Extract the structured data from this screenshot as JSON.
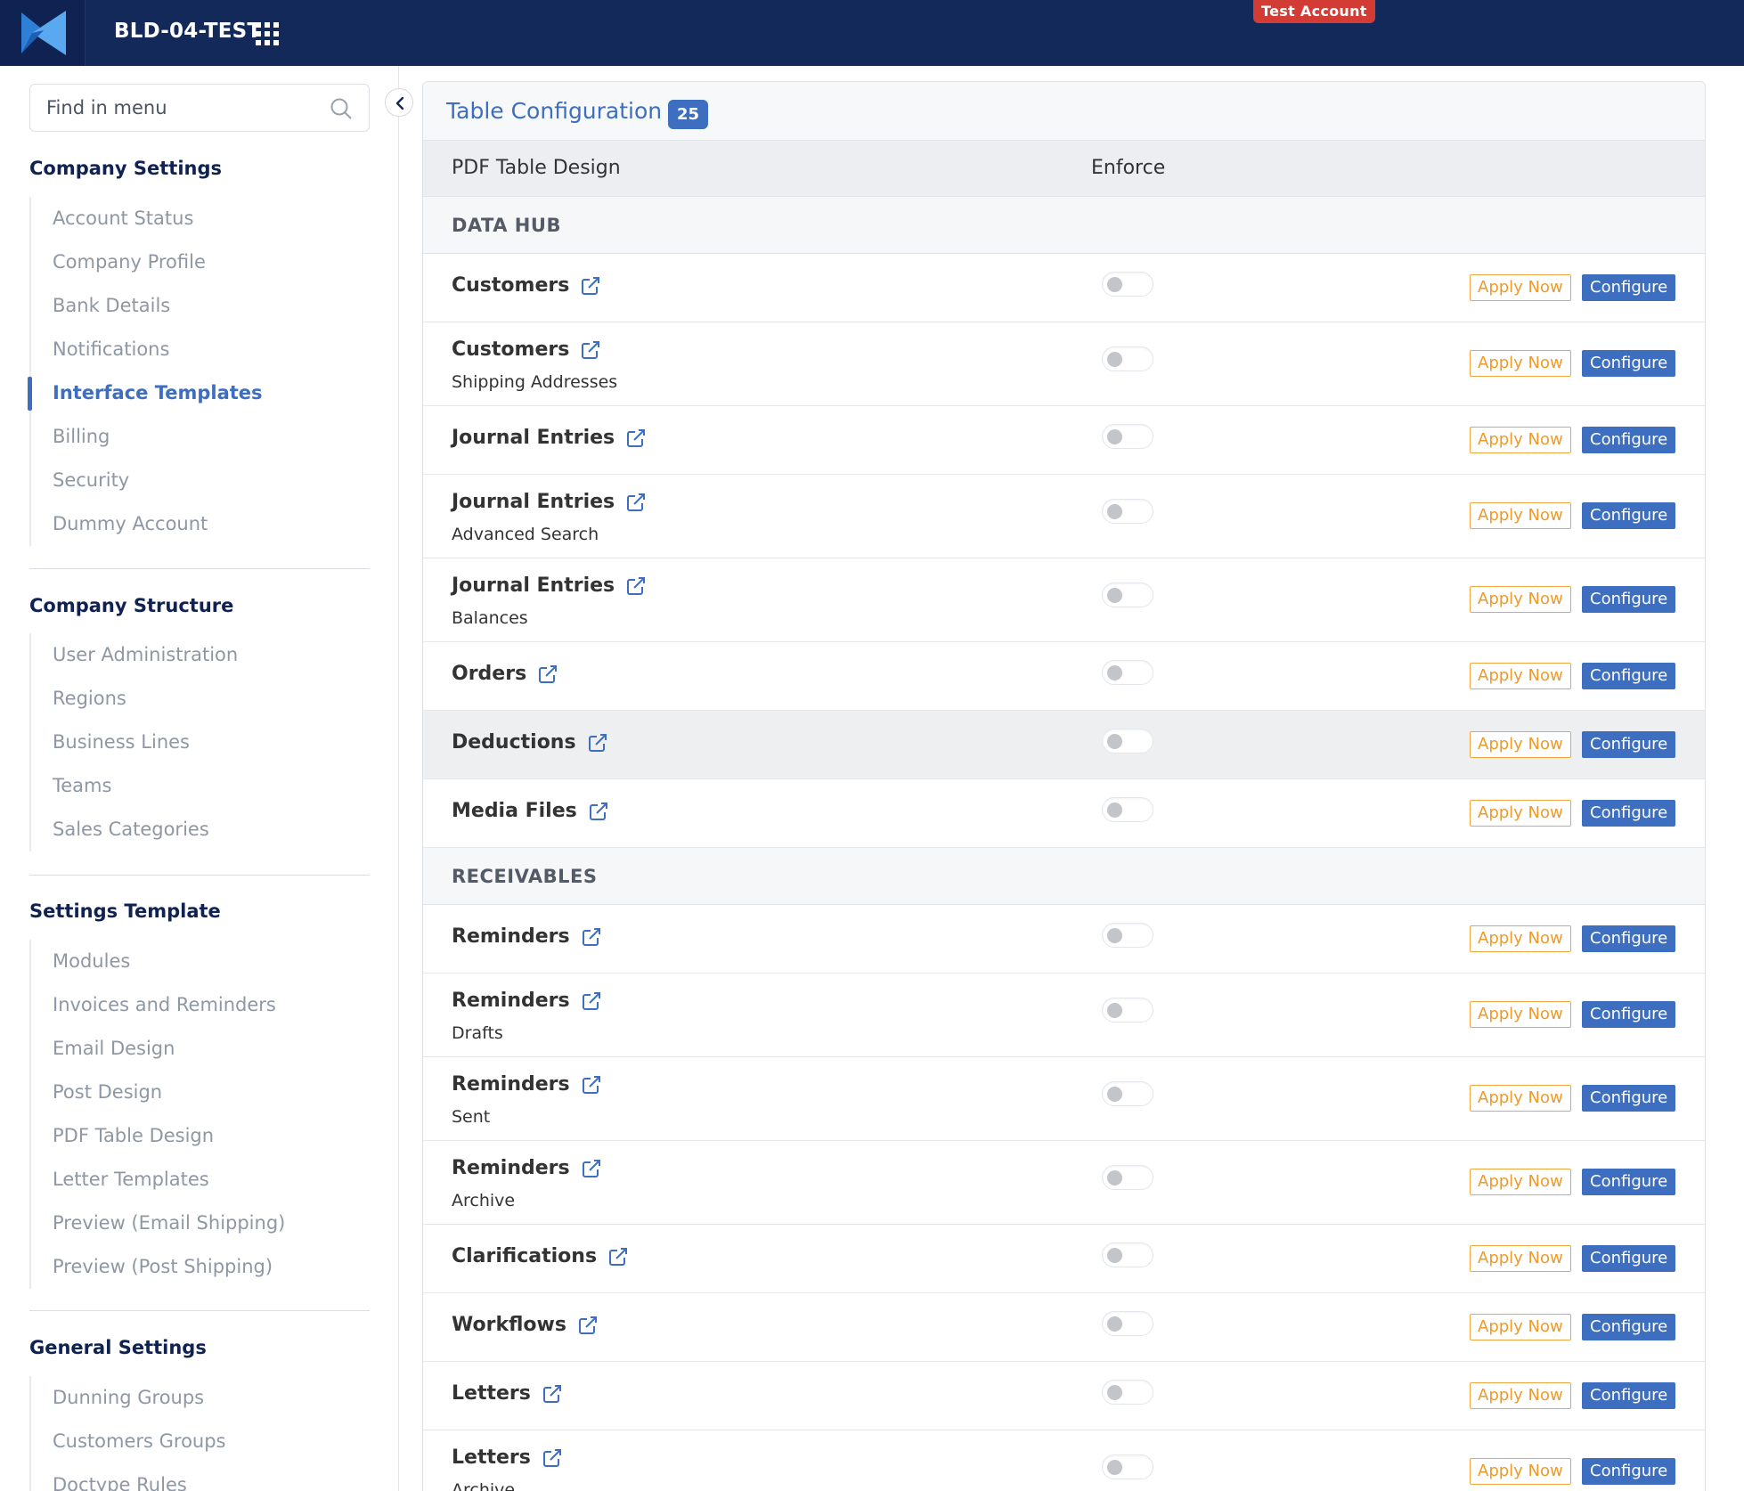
{
  "header": {
    "app_title": "BLD-04-TEST",
    "test_badge": "Test Account",
    "brand_color": "#12295a"
  },
  "sidebar": {
    "search_placeholder": "Find in menu",
    "sections": [
      {
        "title": "Company Settings",
        "items": [
          "Account Status",
          "Company Profile",
          "Bank Details",
          "Notifications",
          "Interface Templates",
          "Billing",
          "Security",
          "Dummy Account"
        ]
      },
      {
        "title": "Company Structure",
        "items": [
          "User Administration",
          "Regions",
          "Business Lines",
          "Teams",
          "Sales Categories"
        ]
      },
      {
        "title": "Settings Template",
        "items": [
          "Modules",
          "Invoices and Reminders",
          "Email Design",
          "Post Design",
          "PDF Table Design",
          "Letter Templates",
          "Preview (Email Shipping)",
          "Preview (Post Shipping)"
        ]
      },
      {
        "title": "General Settings",
        "items": [
          "Dunning Groups",
          "Customers Groups",
          "Doctype Rules"
        ]
      }
    ],
    "active_item": "Interface Templates",
    "accent_color": "#3d6ec0"
  },
  "main": {
    "title": "Table Configuration",
    "count": "25",
    "columns": [
      "PDF Table Design",
      "Enforce"
    ],
    "apply_label": "Apply Now",
    "configure_label": "Configure",
    "groups": [
      {
        "name": "DATA HUB",
        "rows": [
          {
            "name": "Customers",
            "sub": ""
          },
          {
            "name": "Customers",
            "sub": "Shipping Addresses"
          },
          {
            "name": "Journal Entries",
            "sub": ""
          },
          {
            "name": "Journal Entries",
            "sub": "Advanced Search"
          },
          {
            "name": "Journal Entries",
            "sub": "Balances"
          },
          {
            "name": "Orders",
            "sub": ""
          },
          {
            "name": "Deductions",
            "sub": ""
          },
          {
            "name": "Media Files",
            "sub": ""
          }
        ]
      },
      {
        "name": "RECEIVABLES",
        "rows": [
          {
            "name": "Reminders",
            "sub": ""
          },
          {
            "name": "Reminders",
            "sub": "Drafts"
          },
          {
            "name": "Reminders",
            "sub": "Sent"
          },
          {
            "name": "Reminders",
            "sub": "Archive"
          },
          {
            "name": "Clarifications",
            "sub": ""
          },
          {
            "name": "Workflows",
            "sub": ""
          },
          {
            "name": "Letters",
            "sub": ""
          },
          {
            "name": "Letters",
            "sub": "Archive"
          }
        ]
      }
    ],
    "enforce_all": false
  }
}
